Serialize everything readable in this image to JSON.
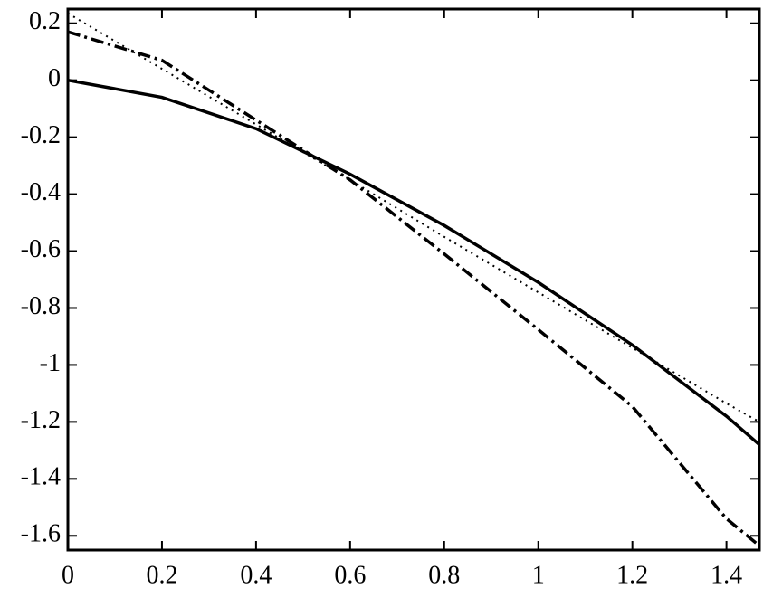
{
  "chart_data": {
    "type": "line",
    "x": [
      0,
      0.2,
      0.4,
      0.6,
      0.8,
      1.0,
      1.2,
      1.4,
      1.47
    ],
    "series": [
      {
        "color": "#000000",
        "style": "solid",
        "values": [
          0,
          -0.06,
          -0.17,
          -0.33,
          -0.51,
          -0.71,
          -0.93,
          -1.18,
          -1.28
        ]
      },
      {
        "color": "#000000",
        "style": "dotted",
        "values": [
          0.235,
          0.04,
          -0.155,
          -0.35,
          -0.55,
          -0.745,
          -0.94,
          -1.135,
          -1.2
        ]
      },
      {
        "color": "#000000",
        "style": "dashdot",
        "values": [
          0.17,
          0.07,
          -0.14,
          -0.35,
          -0.61,
          -0.876,
          -1.146,
          -1.54,
          -1.635
        ]
      }
    ],
    "xlim": [
      0,
      1.47
    ],
    "xticks": [
      0,
      0.2,
      0.4,
      0.6,
      0.8,
      1,
      1.2,
      1.4
    ],
    "ylim": [
      -1.65,
      0.25
    ],
    "yticks": [
      0.2,
      0,
      -0.2,
      -0.4,
      -0.6,
      -0.8,
      -1,
      -1.2,
      -1.4,
      -1.6
    ],
    "grid": false
  }
}
